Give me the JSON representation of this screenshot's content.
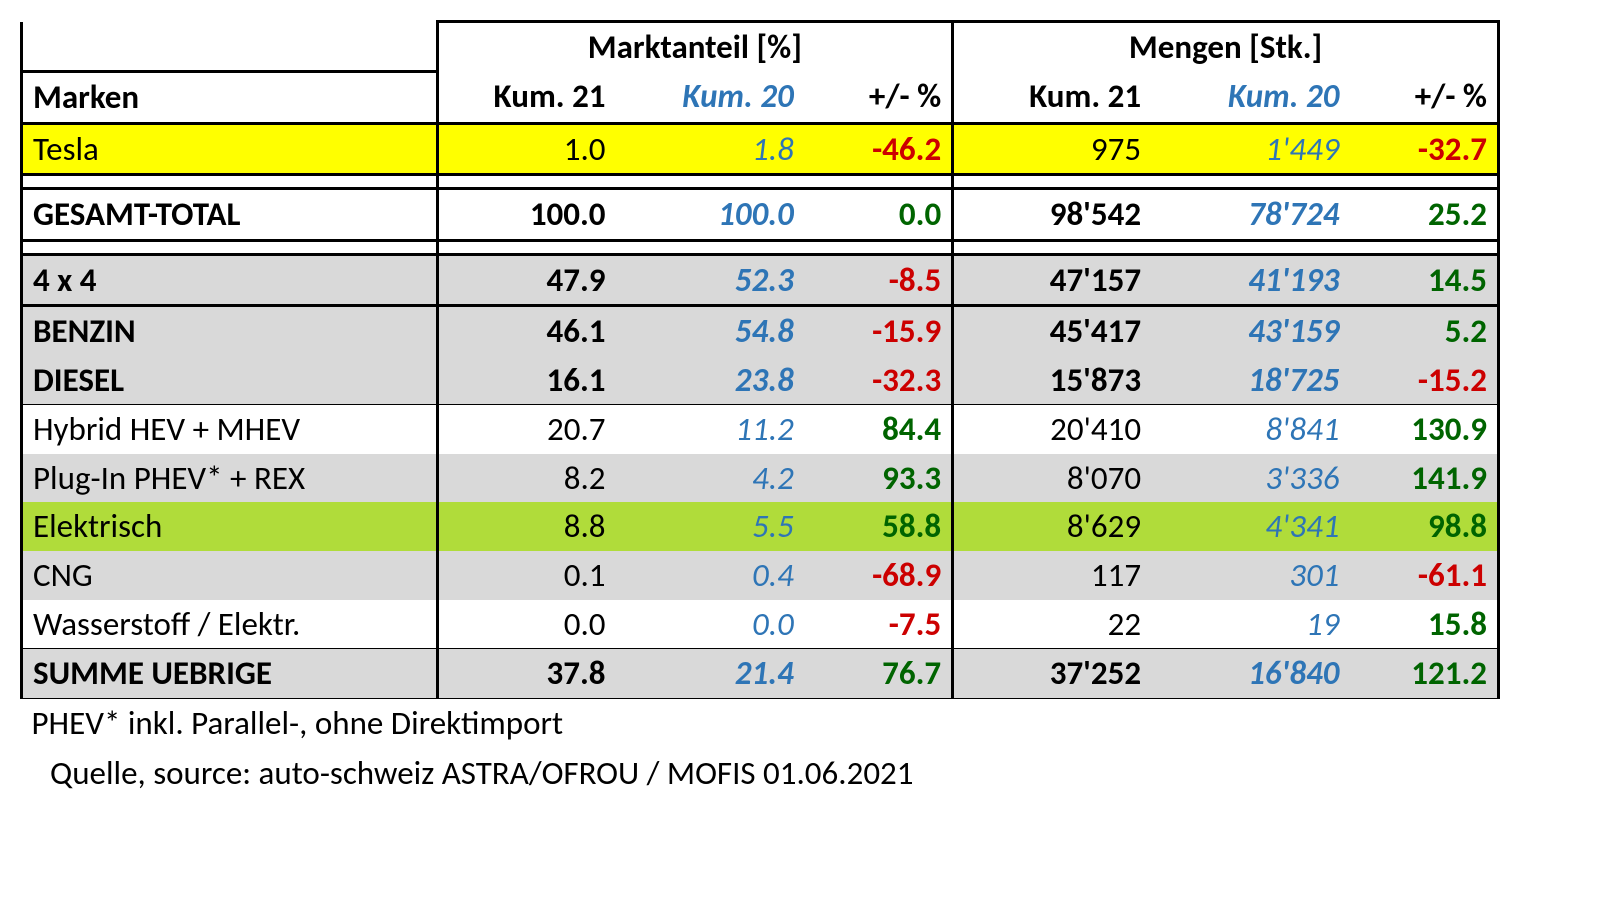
{
  "headers": {
    "brands": "Marken",
    "group_share": "Marktanteil [%]",
    "group_qty": "Mengen [Stk.]",
    "kum21": "Kum. 21",
    "kum20": "Kum. 20",
    "delta": "+/- %"
  },
  "rows": [
    {
      "id": "tesla",
      "label": "Tesla",
      "highlight": "yellow",
      "bold": false,
      "share21": "1.0",
      "share20": "1.8",
      "share_delta": "-46.2",
      "qty21": "975",
      "qty20": "1'449",
      "qty_delta": "-32.7",
      "borders": [
        "thickbot"
      ]
    },
    {
      "spacer": true
    },
    {
      "id": "total",
      "label": "GESAMT-TOTAL",
      "bold": true,
      "share21": "100.0",
      "share20": "100.0",
      "share_delta": "0.0",
      "qty21": "98'542",
      "qty20": "78'724",
      "qty_delta": "25.2",
      "borders": [
        "thicktop",
        "thickbot"
      ]
    },
    {
      "spacer": true
    },
    {
      "id": "4x4",
      "label": "4 x 4",
      "bold": true,
      "highlight": "gray",
      "share21": "47.9",
      "share20": "52.3",
      "share_delta": "-8.5",
      "qty21": "47'157",
      "qty20": "41'193",
      "qty_delta": "14.5",
      "borders": [
        "thicktop",
        "thickbot"
      ]
    },
    {
      "id": "benzin",
      "label": "BENZIN",
      "bold": true,
      "highlight": "gray",
      "share21": "46.1",
      "share20": "54.8",
      "share_delta": "-15.9",
      "qty21": "45'417",
      "qty20": "43'159",
      "qty_delta": "5.2",
      "borders": []
    },
    {
      "id": "diesel",
      "label": "DIESEL",
      "bold": true,
      "highlight": "gray",
      "share21": "16.1",
      "share20": "23.8",
      "share_delta": "-32.3",
      "qty21": "15'873",
      "qty20": "18'725",
      "qty_delta": "-15.2",
      "borders": [
        "thinbot"
      ]
    },
    {
      "id": "hybrid",
      "label": "Hybrid HEV + MHEV",
      "bold": false,
      "share21": "20.7",
      "share20": "11.2",
      "share_delta": "84.4",
      "qty21": "20'410",
      "qty20": "8'841",
      "qty_delta": "130.9",
      "borders": []
    },
    {
      "id": "phev",
      "label": "Plug-In PHEV* + REX",
      "bold": false,
      "highlight": "gray",
      "share21": "8.2",
      "share20": "4.2",
      "share_delta": "93.3",
      "qty21": "8'070",
      "qty20": "3'336",
      "qty_delta": "141.9",
      "borders": []
    },
    {
      "id": "elektrisch",
      "label": "Elektrisch",
      "bold": false,
      "highlight": "green",
      "share21": "8.8",
      "share20": "5.5",
      "share_delta": "58.8",
      "qty21": "8'629",
      "qty20": "4'341",
      "qty_delta": "98.8",
      "borders": []
    },
    {
      "id": "cng",
      "label": "CNG",
      "bold": false,
      "highlight": "gray",
      "share21": "0.1",
      "share20": "0.4",
      "share_delta": "-68.9",
      "qty21": "117",
      "qty20": "301",
      "qty_delta": "-61.1",
      "borders": []
    },
    {
      "id": "h2",
      "label": "Wasserstoff / Elektr.",
      "bold": false,
      "share21": "0.0",
      "share20": "0.0",
      "share_delta": "-7.5",
      "qty21": "22",
      "qty20": "19",
      "qty_delta": "15.8",
      "borders": []
    },
    {
      "id": "summe",
      "label": "SUMME UEBRIGE",
      "bold": true,
      "highlight": "gray",
      "share21": "37.8",
      "share20": "21.4",
      "share_delta": "76.7",
      "qty21": "37'252",
      "qty20": "16'840",
      "qty_delta": "121.2",
      "borders": [
        "thintop",
        "thinbot"
      ]
    }
  ],
  "footnote": "PHEV* inkl. Parallel-, ohne Direktimport",
  "source": "Quelle, source: auto-schweiz ASTRA/OFROU / MOFIS 01.06.2021",
  "colors": {
    "kum20": "#2e75b6",
    "positive": "#006400",
    "negative": "#cc0000",
    "highlight_yellow": "#ffff00",
    "highlight_green": "#b0dc3a",
    "highlight_gray": "#d9d9d9"
  }
}
